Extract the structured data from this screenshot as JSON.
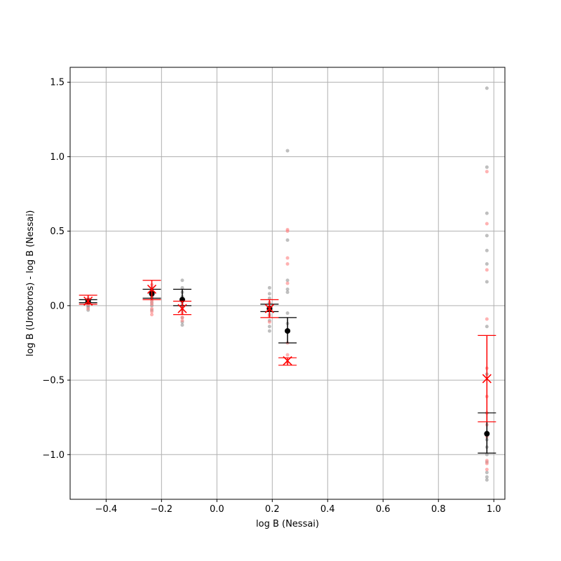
{
  "chart_data": {
    "type": "scatter",
    "xlabel": "log B (Nessai)",
    "ylabel": "log B (Uroboros) - log B (Nessai)",
    "xlim": [
      -0.53,
      1.04
    ],
    "ylim": [
      -1.3,
      1.6
    ],
    "grid": true,
    "x_ticks": [
      -0.4,
      -0.2,
      0.0,
      0.2,
      0.4,
      0.6,
      0.8,
      1.0
    ],
    "x_tick_labels": [
      "−0.4",
      "−0.2",
      "0.0",
      "0.2",
      "0.4",
      "0.6",
      "0.8",
      "1.0"
    ],
    "y_ticks": [
      -1.0,
      -0.5,
      0.0,
      0.5,
      1.0,
      1.5
    ],
    "y_tick_labels": [
      "−1.0",
      "−0.5",
      "0.0",
      "0.5",
      "1.0",
      "1.5"
    ],
    "colors": {
      "black_series": "#000000",
      "red_series": "#ff0000",
      "grey_points": "#808080",
      "light_red_points": "#ff8080"
    },
    "grey_points": [
      [
        -0.465,
        0.04
      ],
      [
        -0.465,
        0.02
      ],
      [
        -0.465,
        0.0
      ],
      [
        -0.465,
        -0.01
      ],
      [
        -0.465,
        -0.03
      ],
      [
        -0.465,
        0.03
      ],
      [
        -0.235,
        0.12
      ],
      [
        -0.235,
        0.1
      ],
      [
        -0.235,
        0.08
      ],
      [
        -0.235,
        0.06
      ],
      [
        -0.235,
        0.04
      ],
      [
        -0.235,
        0.02
      ],
      [
        -0.235,
        0.0
      ],
      [
        -0.235,
        -0.03
      ],
      [
        -0.125,
        0.17
      ],
      [
        -0.125,
        0.12
      ],
      [
        -0.125,
        0.09
      ],
      [
        -0.125,
        0.06
      ],
      [
        -0.125,
        0.03
      ],
      [
        -0.125,
        0.0
      ],
      [
        -0.125,
        -0.03
      ],
      [
        -0.125,
        -0.08
      ],
      [
        -0.125,
        -0.11
      ],
      [
        -0.125,
        -0.13
      ],
      [
        0.19,
        0.12
      ],
      [
        0.19,
        0.08
      ],
      [
        0.19,
        0.05
      ],
      [
        0.19,
        0.02
      ],
      [
        0.19,
        -0.02
      ],
      [
        0.19,
        -0.06
      ],
      [
        0.19,
        -0.1
      ],
      [
        0.19,
        -0.14
      ],
      [
        0.19,
        -0.17
      ],
      [
        0.255,
        1.04
      ],
      [
        0.255,
        0.44
      ],
      [
        0.255,
        0.17
      ],
      [
        0.255,
        0.11
      ],
      [
        0.255,
        0.09
      ],
      [
        0.255,
        -0.05
      ],
      [
        0.255,
        -0.12
      ],
      [
        0.975,
        1.46
      ],
      [
        0.975,
        0.93
      ],
      [
        0.975,
        0.62
      ],
      [
        0.975,
        0.47
      ],
      [
        0.975,
        0.37
      ],
      [
        0.975,
        0.28
      ],
      [
        0.975,
        0.16
      ],
      [
        0.975,
        -0.14
      ],
      [
        0.975,
        -0.46
      ],
      [
        0.975,
        -0.9
      ],
      [
        0.975,
        -0.95
      ],
      [
        0.975,
        -1.0
      ],
      [
        0.975,
        -1.05
      ],
      [
        0.975,
        -1.12
      ],
      [
        0.975,
        -1.15
      ],
      [
        0.975,
        -1.17
      ]
    ],
    "light_red_points": [
      [
        -0.465,
        0.05
      ],
      [
        -0.465,
        0.03
      ],
      [
        -0.465,
        0.01
      ],
      [
        -0.465,
        -0.02
      ],
      [
        -0.235,
        0.14
      ],
      [
        -0.235,
        0.1
      ],
      [
        -0.235,
        0.06
      ],
      [
        -0.235,
        0.03
      ],
      [
        -0.235,
        0.01
      ],
      [
        -0.235,
        -0.02
      ],
      [
        -0.235,
        -0.04
      ],
      [
        -0.235,
        -0.06
      ],
      [
        -0.125,
        0.04
      ],
      [
        -0.125,
        0.01
      ],
      [
        -0.125,
        -0.02
      ],
      [
        -0.125,
        -0.05
      ],
      [
        -0.125,
        -0.08
      ],
      [
        -0.125,
        -0.1
      ],
      [
        0.19,
        0.02
      ],
      [
        0.19,
        -0.03
      ],
      [
        0.19,
        -0.07
      ],
      [
        0.19,
        -0.11
      ],
      [
        0.255,
        0.51
      ],
      [
        0.255,
        0.5
      ],
      [
        0.255,
        0.32
      ],
      [
        0.255,
        0.28
      ],
      [
        0.255,
        0.15
      ],
      [
        0.255,
        -0.25
      ],
      [
        0.255,
        -0.33
      ],
      [
        0.255,
        -0.38
      ],
      [
        0.975,
        0.9
      ],
      [
        0.975,
        0.55
      ],
      [
        0.975,
        0.24
      ],
      [
        0.975,
        -0.09
      ],
      [
        0.975,
        -0.42
      ],
      [
        0.975,
        -0.61
      ],
      [
        0.975,
        -0.72
      ],
      [
        0.975,
        -0.8
      ],
      [
        0.975,
        -0.88
      ],
      [
        0.975,
        -1.04
      ],
      [
        0.975,
        -1.06
      ],
      [
        0.975,
        -1.1
      ]
    ],
    "series": [
      {
        "marker": "circle",
        "color": "#000000",
        "points": [
          {
            "x": -0.465,
            "y": 0.03,
            "err_low": 0.02,
            "err_high": 0.04
          },
          {
            "x": -0.235,
            "y": 0.08,
            "err_low": 0.05,
            "err_high": 0.11
          },
          {
            "x": -0.125,
            "y": 0.04,
            "err_low": 0.0,
            "err_high": 0.11
          },
          {
            "x": 0.19,
            "y": -0.02,
            "err_low": -0.04,
            "err_high": 0.01
          },
          {
            "x": 0.255,
            "y": -0.17,
            "err_low": -0.25,
            "err_high": -0.08
          },
          {
            "x": 0.975,
            "y": -0.86,
            "err_low": -0.99,
            "err_high": -0.72
          }
        ]
      },
      {
        "marker": "x",
        "color": "#ff0000",
        "points": [
          {
            "x": -0.465,
            "y": 0.03,
            "err_low": 0.01,
            "err_high": 0.07
          },
          {
            "x": -0.235,
            "y": 0.11,
            "err_low": 0.04,
            "err_high": 0.17
          },
          {
            "x": -0.125,
            "y": -0.02,
            "err_low": -0.06,
            "err_high": 0.03
          },
          {
            "x": 0.19,
            "y": -0.02,
            "err_low": -0.08,
            "err_high": 0.04
          },
          {
            "x": 0.255,
            "y": -0.37,
            "err_low": -0.4,
            "err_high": -0.35
          },
          {
            "x": 0.975,
            "y": -0.49,
            "err_low": -0.78,
            "err_high": -0.2
          }
        ]
      }
    ]
  }
}
